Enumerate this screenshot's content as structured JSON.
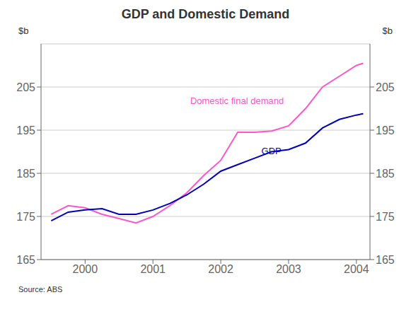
{
  "chart_data": {
    "type": "line",
    "title": "GDP and Domestic Demand",
    "ylabel": "$b",
    "y2label": "$b",
    "source": "Source: ABS",
    "x": [
      1999.5,
      1999.75,
      2000.0,
      2000.25,
      2000.5,
      2000.75,
      2001.0,
      2001.25,
      2001.5,
      2001.75,
      2002.0,
      2002.25,
      2002.5,
      2002.75,
      2003.0,
      2003.25,
      2003.5,
      2003.75,
      2004.0,
      2004.1
    ],
    "series": [
      {
        "name": "Domestic final demand",
        "color": "#FF55CC",
        "values": [
          175.5,
          177.5,
          177.0,
          175.5,
          174.5,
          173.5,
          175.0,
          177.5,
          180.5,
          184.5,
          188.0,
          194.5,
          194.5,
          194.8,
          196.0,
          200.0,
          205.0,
          207.5,
          210.0,
          210.5
        ]
      },
      {
        "name": "GDP",
        "color": "#0000BB",
        "values": [
          174.0,
          176.0,
          176.5,
          176.8,
          175.5,
          175.5,
          176.5,
          178.0,
          180.0,
          182.5,
          185.5,
          187.0,
          188.5,
          190.0,
          190.5,
          192.0,
          195.5,
          197.5,
          198.5,
          198.8
        ]
      }
    ],
    "xlim": [
      1999.35,
      2004.2
    ],
    "xticks": [
      2000,
      2001,
      2002,
      2003,
      2004
    ],
    "ylim": [
      165,
      215
    ],
    "yticks": [
      165,
      175,
      185,
      195,
      205
    ],
    "y2lim": [
      165,
      215
    ],
    "y2ticks": [
      165,
      175,
      185,
      195,
      205
    ],
    "grid": "y",
    "annotations": [
      {
        "text": "Domestic final demand",
        "x": 2001.55,
        "y": 200.5,
        "color": "#FF55CC"
      },
      {
        "text": "GDP",
        "x": 2002.6,
        "y": 189.0,
        "color": "#0000BB"
      }
    ]
  }
}
